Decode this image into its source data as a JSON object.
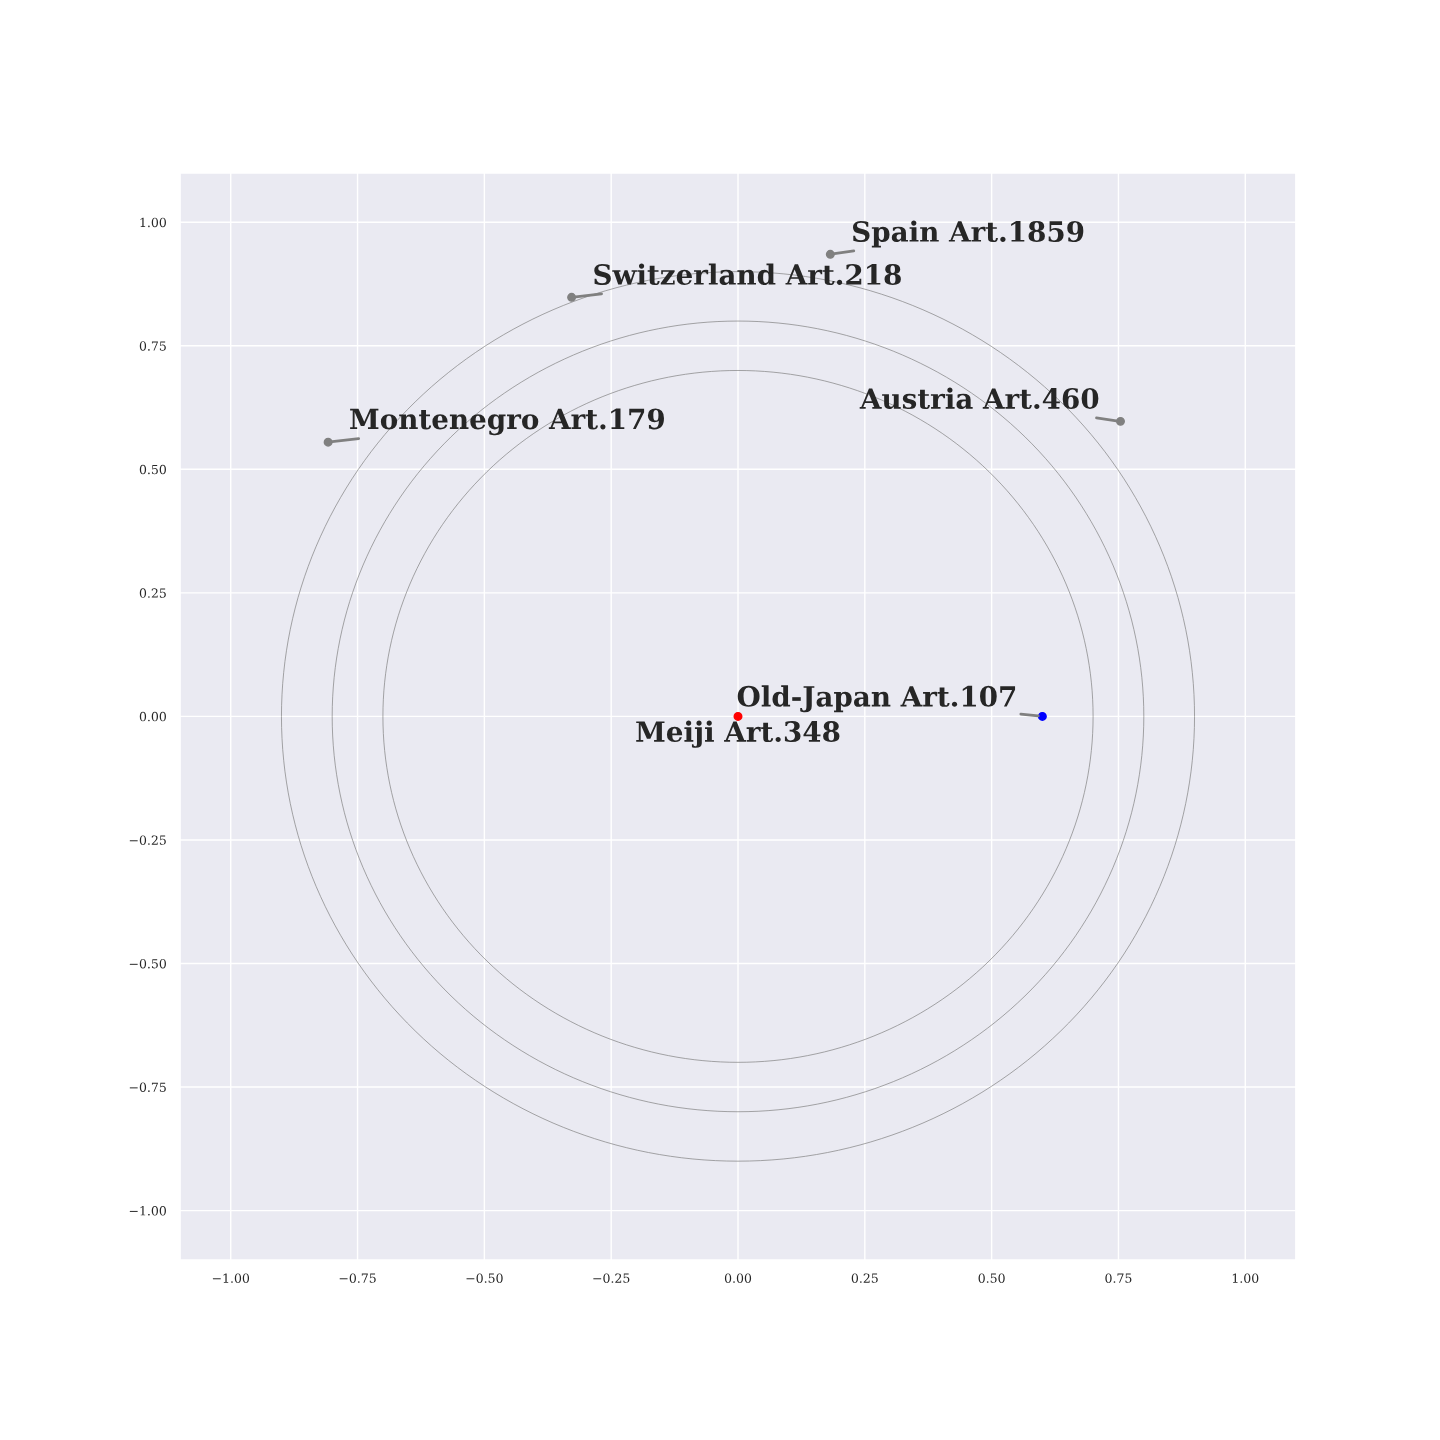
{
  "chart_data": {
    "type": "scatter",
    "xlim": [
      -1.1,
      1.1
    ],
    "ylim": [
      -1.1,
      1.1
    ],
    "xticks": [
      {
        "value": -1.0,
        "label": "−1.00"
      },
      {
        "value": -0.75,
        "label": "−0.75"
      },
      {
        "value": -0.5,
        "label": "−0.50"
      },
      {
        "value": -0.25,
        "label": "−0.25"
      },
      {
        "value": 0.0,
        "label": "0.00"
      },
      {
        "value": 0.25,
        "label": "0.25"
      },
      {
        "value": 0.5,
        "label": "0.50"
      },
      {
        "value": 0.75,
        "label": "0.75"
      },
      {
        "value": 1.0,
        "label": "1.00"
      }
    ],
    "yticks": [
      {
        "value": -1.0,
        "label": "−1.00"
      },
      {
        "value": -0.75,
        "label": "−0.75"
      },
      {
        "value": -0.5,
        "label": "−0.50"
      },
      {
        "value": -0.25,
        "label": "−0.25"
      },
      {
        "value": 0.0,
        "label": "0.00"
      },
      {
        "value": 0.25,
        "label": "0.25"
      },
      {
        "value": 0.5,
        "label": "0.50"
      },
      {
        "value": 0.75,
        "label": "0.75"
      },
      {
        "value": 1.0,
        "label": "1.00"
      }
    ],
    "grid": true,
    "legend": false,
    "series": [
      {
        "type": "scatter",
        "marker": "circle",
        "x": [
          0.182,
          -0.328,
          -0.808,
          0.754,
          0.6,
          0.0
        ],
        "values": [
          0.935,
          0.848,
          0.555,
          0.597,
          0.0,
          0.0
        ],
        "colors": [
          "#808080",
          "#808080",
          "#808080",
          "#808080",
          "#0000ff",
          "#ff0000"
        ]
      }
    ],
    "annotations": [
      {
        "text": "Spain Art.1859",
        "x": 0.182,
        "y": 0.935
      },
      {
        "text": "Switzerland Art.218",
        "x": -0.328,
        "y": 0.848
      },
      {
        "text": "Montenegro Art.179",
        "x": -0.808,
        "y": 0.555
      },
      {
        "text": "Austria Art.460",
        "x": 0.754,
        "y": 0.597
      },
      {
        "text": "Old-Japan Art.107",
        "x": 0.6,
        "y": 0.0
      },
      {
        "text": "Meiji Art.348",
        "x": 0.0,
        "y": 0.0
      }
    ]
  }
}
